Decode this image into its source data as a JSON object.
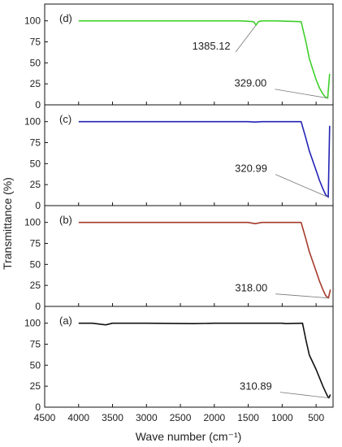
{
  "chart_data": {
    "type": "line",
    "xlabel": "Wave number (cm⁻¹)",
    "ylabel": "Transmittance (%)",
    "xlim": [
      4500,
      250
    ],
    "ylim": [
      0,
      120
    ],
    "x_ticks": [
      "4500",
      "4000",
      "3500",
      "3000",
      "2500",
      "2000",
      "1500",
      "1000",
      "500"
    ],
    "y_ticks": [
      "0",
      "25",
      "50",
      "75",
      "100"
    ],
    "panels": [
      {
        "label": "(d)",
        "color": "#3ecf2a",
        "x": [
          4000,
          3000,
          2000,
          1600,
          1420,
          1385.12,
          1350,
          1300,
          1100,
          720,
          650,
          600,
          500,
          450,
          400,
          360,
          329,
          300
        ],
        "y": [
          100,
          100,
          100,
          100,
          99,
          95,
          99,
          100,
          100,
          99,
          75,
          55,
          30,
          20,
          13,
          9,
          8,
          37
        ],
        "annotations": [
          {
            "text": "1385.12",
            "x": 1385.12,
            "y": 95
          },
          {
            "text": "329.00",
            "x": 329,
            "y": 8
          }
        ]
      },
      {
        "label": "(c)",
        "color": "#2323b4",
        "x": [
          4000,
          3000,
          2000,
          1500,
          1400,
          1300,
          1000,
          720,
          650,
          600,
          500,
          450,
          400,
          360,
          320.99,
          300
        ],
        "y": [
          100,
          100,
          100,
          100,
          99.5,
          100,
          100,
          100,
          80,
          65,
          42,
          30,
          20,
          13,
          10,
          95
        ],
        "annotations": [
          {
            "text": "320.99",
            "x": 320.99,
            "y": 10
          }
        ]
      },
      {
        "label": "(b)",
        "color": "#a53a2a",
        "x": [
          4000,
          3000,
          2000,
          1500,
          1400,
          1300,
          1000,
          720,
          650,
          600,
          500,
          450,
          400,
          360,
          318,
          290
        ],
        "y": [
          100,
          100,
          100,
          100,
          98.5,
          100,
          100,
          100,
          80,
          65,
          42,
          30,
          20,
          13,
          10,
          20
        ],
        "annotations": [
          {
            "text": "318.00",
            "x": 318,
            "y": 10
          }
        ]
      },
      {
        "label": "(a)",
        "color": "#111111",
        "x": [
          4000,
          3800,
          3700,
          3600,
          3500,
          3000,
          2300,
          2000,
          1600,
          1500,
          1000,
          950,
          700,
          650,
          600,
          500,
          450,
          400,
          360,
          330,
          310.89,
          290
        ],
        "y": [
          100,
          100,
          99,
          98,
          100,
          100,
          99.5,
          100,
          100,
          100,
          100,
          99.5,
          100,
          80,
          62,
          45,
          35,
          25,
          18,
          13,
          11,
          15
        ],
        "annotations": [
          {
            "text": "310.89",
            "x": 310.89,
            "y": 11
          }
        ]
      }
    ]
  }
}
